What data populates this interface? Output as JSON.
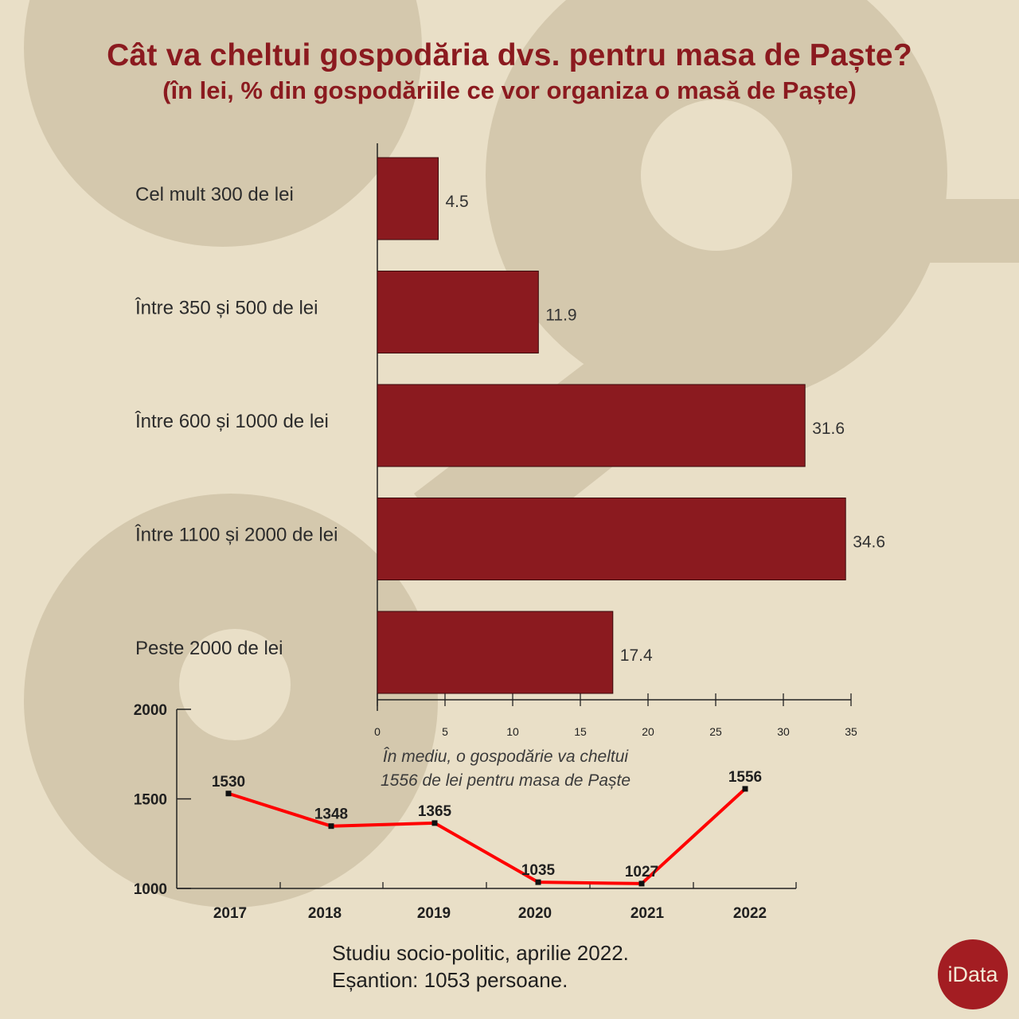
{
  "header": {
    "title": "Cât va cheltui gospodăria dvs. pentru masa de Paște?",
    "subtitle": "(în lei, % din gospodăriile ce vor organiza o masă de Paște)"
  },
  "colors": {
    "bar": "#8b1a1f",
    "line": "#ff0000",
    "title": "#8b1a1f",
    "background": "#e9dfc7"
  },
  "chart_data": [
    {
      "type": "bar",
      "orientation": "horizontal",
      "categories": [
        "Cel mult 300 de lei",
        "Între 350 și 500 de lei",
        "Între 600 și 1000 de lei",
        "Între 1100 și 2000 de lei",
        "Peste 2000 de lei"
      ],
      "values": [
        4.5,
        11.9,
        31.6,
        34.6,
        17.4
      ],
      "value_labels": [
        "4.5",
        "11.9",
        "31.6",
        "34.6",
        "17.4"
      ],
      "xlim": [
        0,
        35
      ],
      "x_ticks": [
        "0",
        "5",
        "10",
        "15",
        "20",
        "25",
        "30",
        "35"
      ],
      "grid": false
    },
    {
      "type": "line",
      "x": [
        "2017",
        "2018",
        "2019",
        "2020",
        "2021",
        "2022"
      ],
      "values": [
        1530,
        1348,
        1365,
        1035,
        1027,
        1556
      ],
      "value_labels": [
        "1530",
        "1348",
        "1365",
        "1035",
        "1027",
        "1556"
      ],
      "ylim": [
        1000,
        2000
      ],
      "y_ticks": [
        "1000",
        "1500",
        "2000"
      ],
      "grid": false
    }
  ],
  "note": {
    "line1": "În mediu, o gospodărie va cheltui",
    "line2": "1556 de lei pentru masa de Paște"
  },
  "footer": {
    "line1": "Studiu socio-politic, aprilie 2022.",
    "line2": "Eșantion: 1053 persoane."
  },
  "logo": {
    "text": "iData"
  }
}
